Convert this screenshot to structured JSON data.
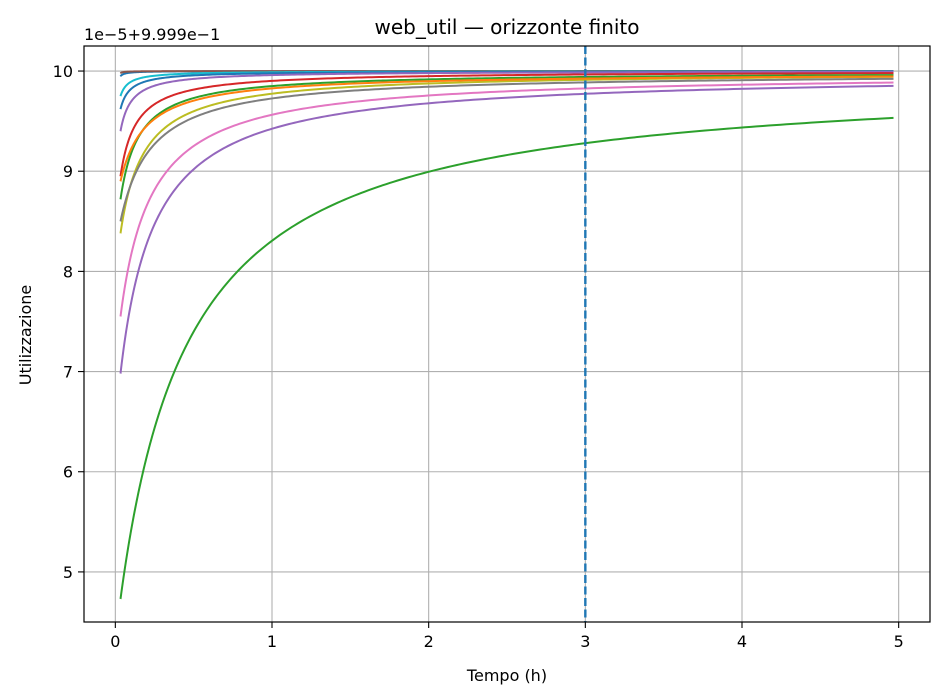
{
  "chart_data": {
    "type": "line",
    "title": "web_util — orizzonte finito",
    "xlabel": "Tempo (h)",
    "ylabel": "Utilizzazione",
    "y_offset_text": "1e−5+9.999e−1",
    "xlim": [
      -0.2,
      5.2
    ],
    "ylim": [
      4.5,
      10.25
    ],
    "xticks": [
      0,
      1,
      2,
      3,
      4,
      5
    ],
    "yticks": [
      5,
      6,
      7,
      8,
      9,
      10
    ],
    "grid": true,
    "x_start": 0.033,
    "x_end": 4.967,
    "vline": {
      "x": 3,
      "color": "#1f77b4",
      "style": "dashed"
    },
    "series": [
      {
        "color": "#1f77b4",
        "start": 9.95,
        "end": 10.0,
        "tau": 0.03
      },
      {
        "color": "#8c564b",
        "start": 9.98,
        "end": 10.0,
        "tau": 0.02
      },
      {
        "color": "#17becf",
        "start": 9.75,
        "end": 10.0,
        "tau": 0.05
      },
      {
        "color": "#1f77b4",
        "start": 9.62,
        "end": 10.0,
        "tau": 0.06
      },
      {
        "color": "#9467bd",
        "start": 9.4,
        "end": 10.0,
        "tau": 0.07
      },
      {
        "color": "#d62728",
        "start": 8.95,
        "end": 10.0,
        "tau": 0.1
      },
      {
        "color": "#2ca02c",
        "start": 8.72,
        "end": 9.99,
        "tau": 0.12
      },
      {
        "color": "#bcbd22",
        "start": 8.38,
        "end": 9.99,
        "tau": 0.15
      },
      {
        "color": "#ff7f0e",
        "start": 8.9,
        "end": 9.98,
        "tau": 0.16
      },
      {
        "color": "#7f7f7f",
        "start": 8.5,
        "end": 9.98,
        "tau": 0.2
      },
      {
        "color": "#e377c2",
        "start": 7.55,
        "end": 9.98,
        "tau": 0.2
      },
      {
        "color": "#9467bd",
        "start": 6.98,
        "end": 9.98,
        "tau": 0.22
      },
      {
        "color": "#2ca02c",
        "start": 4.73,
        "end": 9.97,
        "tau": 0.45
      }
    ]
  }
}
